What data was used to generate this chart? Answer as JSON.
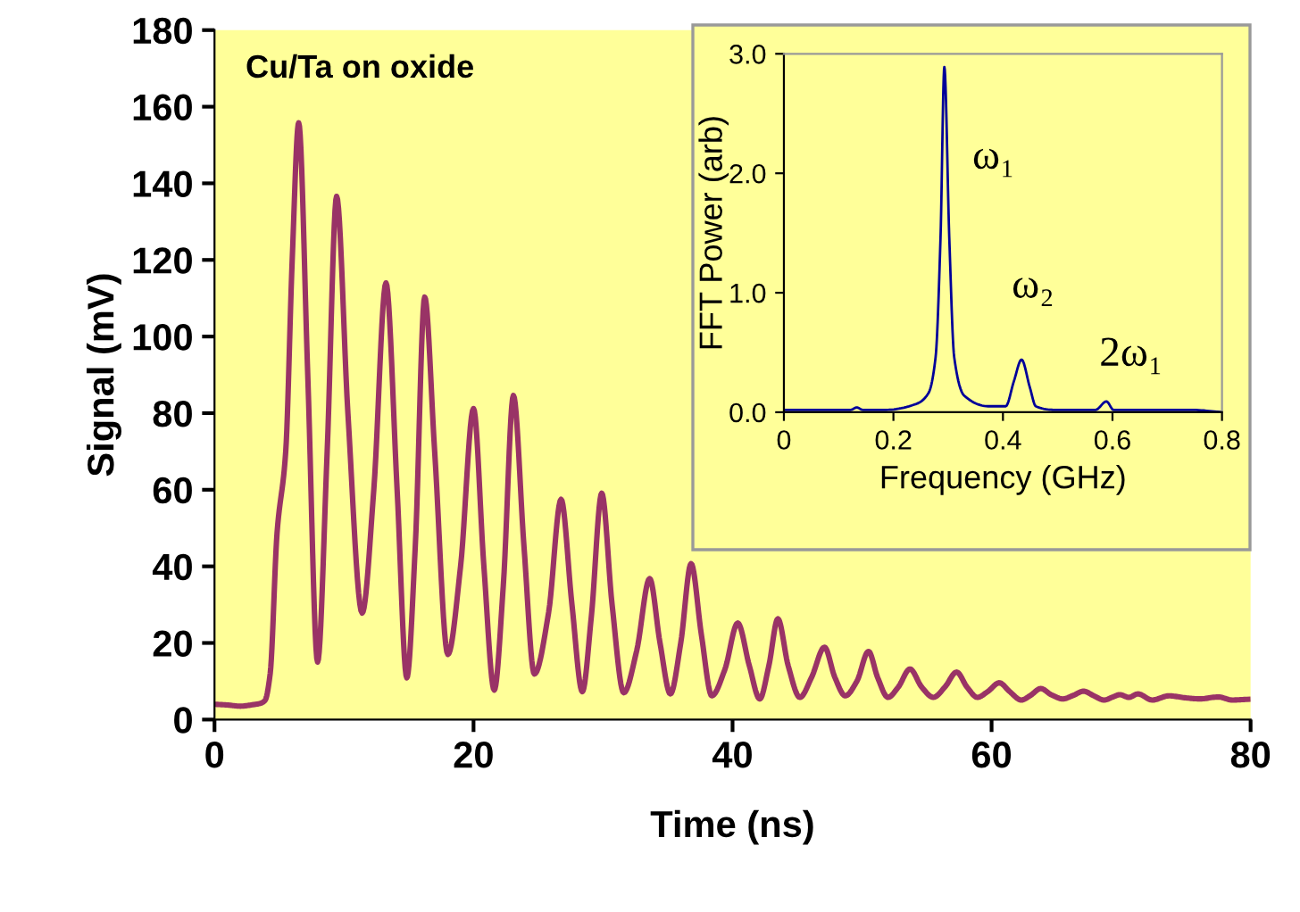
{
  "chart_data": [
    {
      "type": "line",
      "xlabel": "Time (ns)",
      "ylabel": "Signal (mV)",
      "annotations": [
        "Cu/Ta on oxide"
      ],
      "xlim": [
        0,
        80
      ],
      "ylim": [
        0,
        180
      ],
      "xticks": [
        0,
        20,
        40,
        60,
        80
      ],
      "yticks": [
        0,
        20,
        40,
        60,
        80,
        100,
        120,
        140,
        160,
        180
      ],
      "grid": false,
      "legend": false,
      "series": [
        {
          "color": "#993366",
          "x": [
            0,
            1,
            2,
            3,
            3.5,
            3.9,
            4.3,
            4.83,
            5.5,
            6,
            6.5,
            7.2,
            7.96,
            8.7,
            9.43,
            10.3,
            11.4,
            12.3,
            13.24,
            14.1,
            14.85,
            15.5,
            16.23,
            17,
            18.02,
            19,
            20,
            20.8,
            21.6,
            22.3,
            23.08,
            23.9,
            24.7,
            25.8,
            26.76,
            27.6,
            28.4,
            29.1,
            29.9,
            30.7,
            31.6,
            32.6,
            33.6,
            34.4,
            35.2,
            36,
            36.8,
            37.6,
            38.4,
            39.4,
            40.4,
            41.3,
            42.1,
            42.8,
            43.5,
            44.3,
            45.2,
            46.1,
            47.1,
            47.9,
            48.7,
            49.6,
            50.5,
            51.2,
            52,
            52.8,
            53.7,
            54.6,
            55.5,
            56.4,
            57.3,
            58.1,
            58.9,
            59.7,
            60.6,
            61.4,
            62.3,
            63,
            63.8,
            64.6,
            65.5,
            66.3,
            67.1,
            67.9,
            68.7,
            69.3,
            69.9,
            70.6,
            71.3,
            72.4,
            73.7,
            74.9,
            76.1,
            77.5,
            78.6,
            79.8
          ],
          "values": [
            4,
            3.8,
            3.5,
            3.9,
            4.2,
            5,
            12,
            48.7,
            70,
            120,
            155.8,
            90,
            15,
            70,
            136.6,
            80,
            27.8,
            60,
            114,
            60,
            10.9,
            45,
            110.3,
            70,
            17,
            40,
            81.2,
            40,
            7.7,
            35,
            84.6,
            45,
            11.9,
            28,
            57.5,
            30,
            7.3,
            27,
            59.1,
            30,
            7,
            18,
            36.8,
            20,
            6.7,
            20,
            40.7,
            22,
            6.2,
            13,
            25.2,
            14,
            5.4,
            14,
            26.3,
            14,
            5.8,
            11,
            18.9,
            11,
            6.2,
            10,
            17.8,
            11,
            5.8,
            8.5,
            13.2,
            8.5,
            5.8,
            8.5,
            12.4,
            8.5,
            5.8,
            7.3,
            9.6,
            7.3,
            5.1,
            6.3,
            8.1,
            6.5,
            5.4,
            6.3,
            7.4,
            6.2,
            5.1,
            5.8,
            6.5,
            5.8,
            6.7,
            5.1,
            6.2,
            5.7,
            5.4,
            5.9,
            5.1,
            5.3
          ]
        }
      ]
    },
    {
      "type": "line",
      "xlabel": "Frequency (GHz)",
      "ylabel": "FFT Power (arb)",
      "xlim": [
        0,
        0.8
      ],
      "ylim": [
        0,
        3
      ],
      "xticks": [
        0,
        0.2,
        0.4,
        0.6,
        0.8
      ],
      "yticks": [
        {
          "value": 0,
          "label": "0.0"
        },
        {
          "value": 1,
          "label": "1.0"
        },
        {
          "value": 2,
          "label": "2.0"
        },
        {
          "value": 3,
          "label": "3.0"
        }
      ],
      "grid": false,
      "legend": false,
      "annotations": [
        "ω₁",
        "ω₂",
        "2ω₁"
      ],
      "series": [
        {
          "color": "#000099",
          "x": [
            0,
            0.122,
            0.133,
            0.144,
            0.187,
            0.242,
            0.264,
            0.277,
            0.286,
            0.293,
            0.302,
            0.311,
            0.329,
            0.373,
            0.405,
            0.42,
            0.434,
            0.449,
            0.46,
            0.493,
            0.569,
            0.589,
            0.602,
            0.678,
            0.721,
            0.743,
            0.8
          ],
          "values": [
            0.02,
            0.02,
            0.04,
            0.02,
            0.02,
            0.07,
            0.16,
            0.46,
            1.46,
            2.89,
            1.46,
            0.46,
            0.14,
            0.05,
            0.05,
            0.26,
            0.44,
            0.21,
            0.05,
            0.02,
            0.02,
            0.09,
            0.02,
            0.02,
            0.02,
            0.02,
            0
          ]
        }
      ]
    }
  ]
}
